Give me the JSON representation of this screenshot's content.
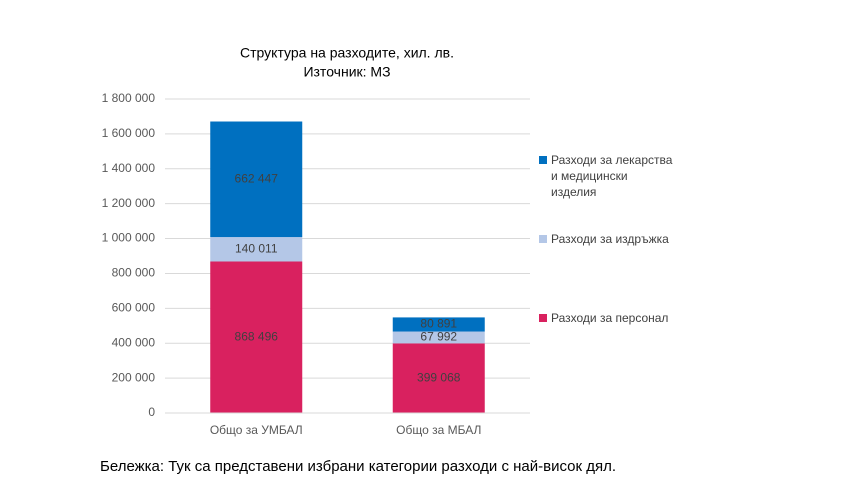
{
  "chart_data": {
    "type": "stacked_bar",
    "title": "Структура на разходите, хил. лв.",
    "subtitle": "Източник: МЗ",
    "categories": [
      "Общо за УМБАЛ",
      "Общо за МБАЛ"
    ],
    "series": [
      {
        "name": "Разходи за персонал",
        "color": "#d9215f",
        "values": [
          868496,
          399068
        ],
        "value_labels": [
          "868 496",
          "399 068"
        ]
      },
      {
        "name": "Разходи за издръжка",
        "color": "#b4c7e7",
        "values": [
          140011,
          67992
        ],
        "value_labels": [
          "140 011",
          "67 992"
        ]
      },
      {
        "name": "Разходи за лекарства и медицински изделия",
        "color": "#0070c0",
        "values": [
          662447,
          80891
        ],
        "value_labels": [
          "662 447",
          "80 891"
        ]
      }
    ],
    "ylim": [
      0,
      1800000
    ],
    "yticks": [
      0,
      {
        "value": 200000,
        "label": "200 000"
      },
      {
        "value": 400000,
        "label": "400 000"
      },
      {
        "value": 600000,
        "label": "600 000"
      },
      {
        "value": 800000,
        "label": "800 000"
      },
      {
        "value": 1000000,
        "label": "1 000 000"
      },
      {
        "value": 1200000,
        "label": "1 200 000"
      },
      {
        "value": 1400000,
        "label": "1 400 000"
      },
      {
        "value": 1600000,
        "label": "1 600 000"
      },
      {
        "value": 1800000,
        "label": "1 800 000"
      }
    ],
    "grid": true,
    "legend": "right"
  },
  "note": "Бележка: Тук са представени избрани категории разходи с най-висок дял."
}
